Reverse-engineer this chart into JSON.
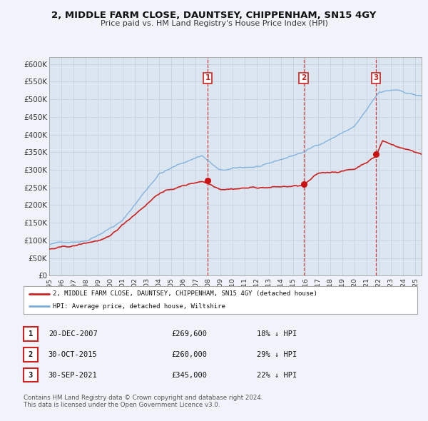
{
  "title": "2, MIDDLE FARM CLOSE, DAUNTSEY, CHIPPENHAM, SN15 4GY",
  "subtitle": "Price paid vs. HM Land Registry's House Price Index (HPI)",
  "background_color": "#f0f4fa",
  "plot_bg_color": "#dce6f0",
  "grid_color": "#c8d4e0",
  "hpi_color": "#7aaddd",
  "price_color": "#cc2222",
  "sale_marker_color": "#cc1111",
  "ylim": [
    0,
    620000
  ],
  "yticks": [
    0,
    50000,
    100000,
    150000,
    200000,
    250000,
    300000,
    350000,
    400000,
    450000,
    500000,
    550000,
    600000
  ],
  "ytick_labels": [
    "£0",
    "£50K",
    "£100K",
    "£150K",
    "£200K",
    "£250K",
    "£300K",
    "£350K",
    "£400K",
    "£450K",
    "£500K",
    "£550K",
    "£600K"
  ],
  "sales": [
    {
      "date": "20-DEC-2007",
      "year": 2007.97,
      "price": 269600,
      "label": "1",
      "pct": "18%",
      "direction": "↓"
    },
    {
      "date": "30-OCT-2015",
      "year": 2015.83,
      "price": 260000,
      "label": "2",
      "pct": "29%",
      "direction": "↓"
    },
    {
      "date": "30-SEP-2021",
      "year": 2021.75,
      "price": 345000,
      "label": "3",
      "pct": "22%",
      "direction": "↓"
    }
  ],
  "legend_property_label": "2, MIDDLE FARM CLOSE, DAUNTSEY, CHIPPENHAM, SN15 4GY (detached house)",
  "legend_hpi_label": "HPI: Average price, detached house, Wiltshire",
  "footer_line1": "Contains HM Land Registry data © Crown copyright and database right 2024.",
  "footer_line2": "This data is licensed under the Open Government Licence v3.0.",
  "xmin": 1995,
  "xmax": 2025.5
}
